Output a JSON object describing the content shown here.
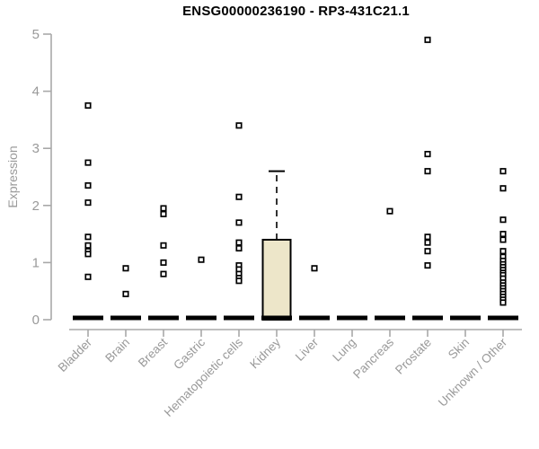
{
  "title": "ENSG00000236190 - RP3-431C21.1",
  "y_axis": {
    "label": "Expression"
  },
  "chart_data": {
    "type": "boxplot",
    "title": "ENSG00000236190 - RP3-431C21.1",
    "xlabel": "",
    "ylabel": "Expression",
    "ylim": [
      0,
      5
    ],
    "yticks": [
      0,
      1,
      2,
      3,
      4,
      5
    ],
    "grid": false,
    "legend": "none",
    "categories": [
      "Bladder",
      "Brain",
      "Breast",
      "Gastric",
      "Hematopoietic cells",
      "Kidney",
      "Liver",
      "Lung",
      "Pancreas",
      "Prostate",
      "Skin",
      "Unknown / Other"
    ],
    "boxes": [
      {
        "category": "Bladder",
        "q1": 0,
        "median": 0,
        "q3": 0,
        "whisker_low": 0,
        "whisker_high": 0
      },
      {
        "category": "Brain",
        "q1": 0,
        "median": 0,
        "q3": 0,
        "whisker_low": 0,
        "whisker_high": 0
      },
      {
        "category": "Breast",
        "q1": 0,
        "median": 0,
        "q3": 0,
        "whisker_low": 0,
        "whisker_high": 0
      },
      {
        "category": "Gastric",
        "q1": 0,
        "median": 0,
        "q3": 0,
        "whisker_low": 0,
        "whisker_high": 0
      },
      {
        "category": "Hematopoietic cells",
        "q1": 0,
        "median": 0,
        "q3": 0,
        "whisker_low": 0,
        "whisker_high": 0
      },
      {
        "category": "Kidney",
        "q1": 0,
        "median": 0,
        "q3": 1.4,
        "whisker_low": 0,
        "whisker_high": 2.6
      },
      {
        "category": "Liver",
        "q1": 0,
        "median": 0,
        "q3": 0,
        "whisker_low": 0,
        "whisker_high": 0
      },
      {
        "category": "Lung",
        "q1": 0,
        "median": 0,
        "q3": 0,
        "whisker_low": 0,
        "whisker_high": 0
      },
      {
        "category": "Pancreas",
        "q1": 0,
        "median": 0,
        "q3": 0,
        "whisker_low": 0,
        "whisker_high": 0
      },
      {
        "category": "Prostate",
        "q1": 0,
        "median": 0,
        "q3": 0,
        "whisker_low": 0,
        "whisker_high": 0
      },
      {
        "category": "Skin",
        "q1": 0,
        "median": 0,
        "q3": 0,
        "whisker_low": 0,
        "whisker_high": 0
      },
      {
        "category": "Unknown / Other",
        "q1": 0,
        "median": 0,
        "q3": 0,
        "whisker_low": 0,
        "whisker_high": 0
      }
    ],
    "outliers": {
      "Bladder": [
        3.75,
        2.75,
        2.35,
        2.05,
        1.45,
        1.3,
        1.2,
        1.15,
        0.75
      ],
      "Brain": [
        0.9,
        0.45
      ],
      "Breast": [
        1.95,
        1.85,
        1.3,
        1.0,
        0.8
      ],
      "Gastric": [
        1.05
      ],
      "Hematopoietic cells": [
        3.4,
        2.15,
        1.7,
        1.35,
        1.25,
        0.95,
        0.88,
        0.8,
        0.73,
        0.68
      ],
      "Kidney": [],
      "Liver": [
        0.9
      ],
      "Lung": [],
      "Pancreas": [
        1.9
      ],
      "Prostate": [
        4.9,
        2.9,
        2.6,
        1.45,
        1.35,
        1.2,
        0.95
      ],
      "Skin": [],
      "Unknown / Other": [
        2.6,
        2.3,
        1.75,
        1.5,
        1.4,
        1.2,
        1.1,
        1.03,
        0.97,
        0.92,
        0.87,
        0.82,
        0.78,
        0.72,
        0.65,
        0.6,
        0.55,
        0.5,
        0.45,
        0.4,
        0.35,
        0.3
      ]
    }
  },
  "colors": {
    "background": "#ffffff",
    "box_fill": "#ede6c9",
    "box_border": "#000000",
    "marker": "#000000",
    "marker_fill": "#ffffff",
    "zero_bar": "#000000",
    "axis_line": "#a8a8a8",
    "axis_text": "#999999",
    "title_text": "#000000"
  }
}
